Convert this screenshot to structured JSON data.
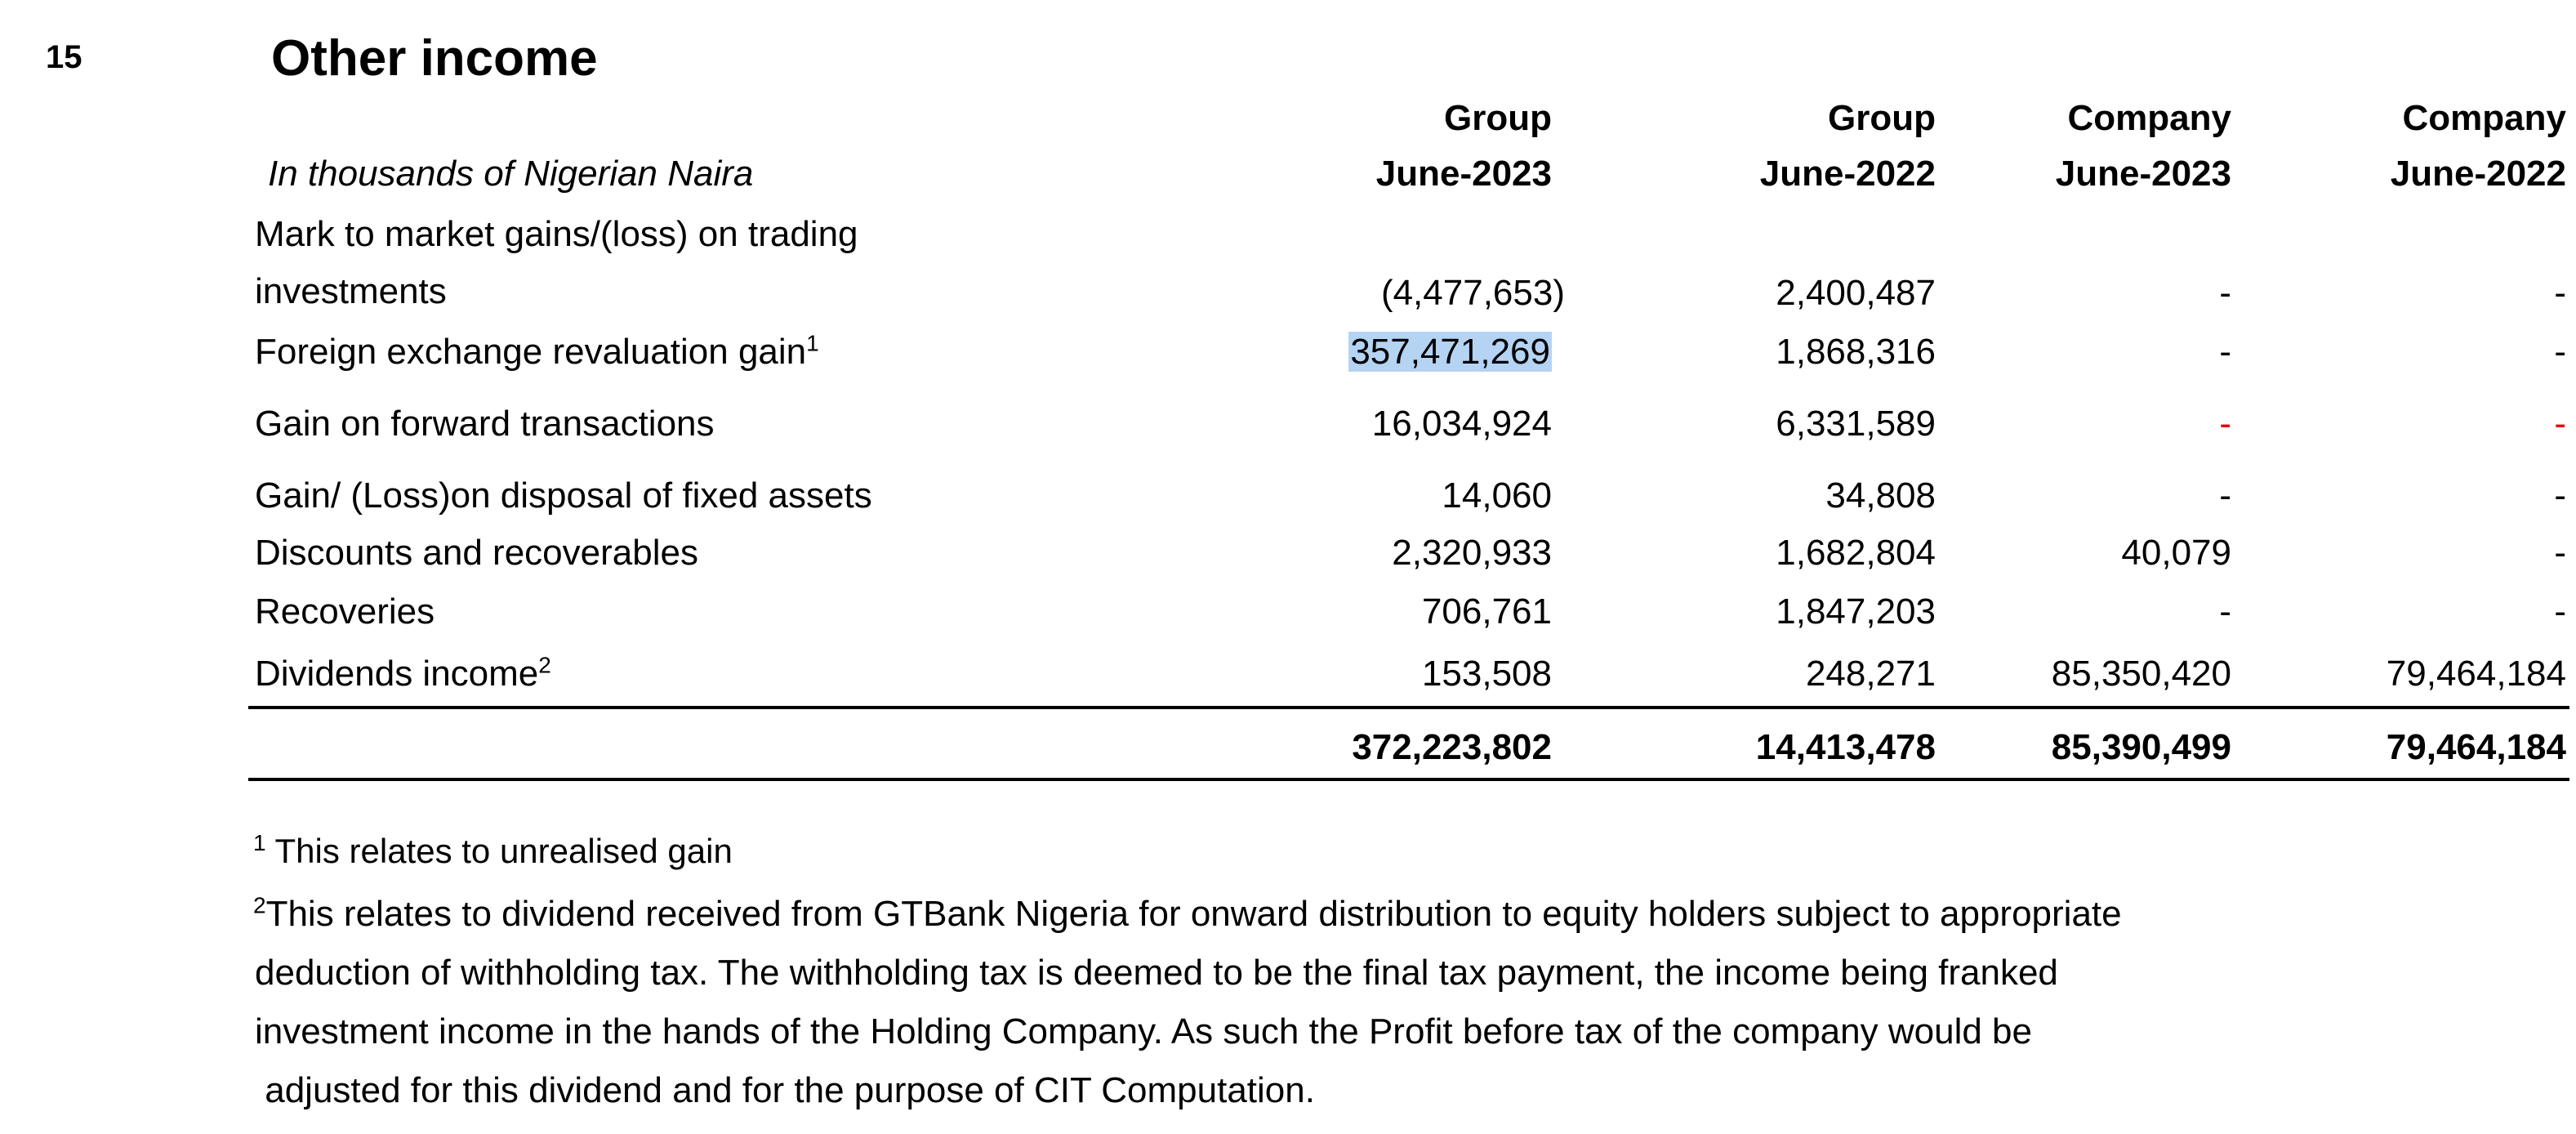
{
  "note": {
    "number": "15",
    "title": "Other income",
    "currency_note": "In thousands of Nigerian Naira"
  },
  "columns": [
    {
      "entity": "Group",
      "period": "June-2023"
    },
    {
      "entity": "Group",
      "period": "June-2022"
    },
    {
      "entity": "Company",
      "period": "June-2023"
    },
    {
      "entity": "Company",
      "period": "June-2022"
    }
  ],
  "rows": [
    {
      "label_line1": "Mark to market gains/(loss) on trading",
      "label_line2": "investments",
      "values": [
        "(4,477,653)",
        "2,400,487",
        "-",
        "-"
      ]
    },
    {
      "label": "Foreign exchange revaluation gain",
      "sup": "1",
      "values": [
        "357,471,269",
        "1,868,316",
        "-",
        "-"
      ]
    },
    {
      "label": " Gain on forward transactions",
      "values": [
        "16,034,924",
        "6,331,589",
        "-",
        "-"
      ]
    },
    {
      "label": "Gain/ (Loss)on disposal of fixed assets",
      "values": [
        "14,060",
        "34,808",
        "-",
        "-"
      ]
    },
    {
      "label": "Discounts and recoverables",
      "values": [
        "2,320,933",
        "1,682,804",
        "40,079",
        "-"
      ]
    },
    {
      "label": "Recoveries",
      "values": [
        "706,761",
        "1,847,203",
        "-",
        "-"
      ]
    },
    {
      "label": "Dividends income",
      "sup": "2",
      "values": [
        "153,508",
        "248,271",
        "85,350,420",
        "79,464,184"
      ]
    }
  ],
  "totals": [
    "372,223,802",
    "14,413,478",
    "85,390,499",
    "79,464,184"
  ],
  "footnotes": {
    "fn1": {
      "marker": "1",
      "text": "This relates to unrealised gain"
    },
    "fn2": {
      "marker": "2",
      "line1": "This relates to dividend received from GTBank Nigeria for onward distribution to equity holders subject to appropriate",
      "line2": "deduction of withholding tax. The withholding tax is deemed to be the final tax payment, the income being franked",
      "line3": "investment income in the hands of the Holding Company. As such the Profit before tax of the company would be",
      "line4": " adjusted for this dividend and for the purpose of CIT Computation."
    }
  },
  "colors": {
    "highlight": "#b5d3f3",
    "red_dash": "#e8000b"
  }
}
